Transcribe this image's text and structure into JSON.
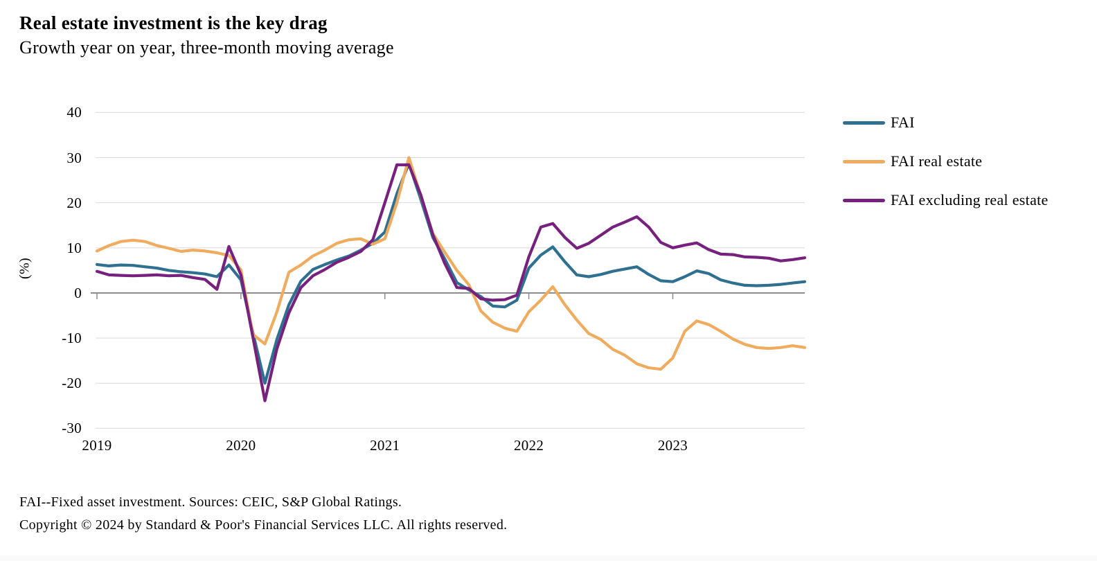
{
  "header": {
    "title": "Real estate investment is the key drag",
    "subtitle": "Growth year on year, three-month moving average"
  },
  "footer": {
    "note": "FAI--Fixed asset investment. Sources: CEIC, S&P Global Ratings.",
    "copyright": "Copyright © 2024 by Standard & Poor's Financial Services LLC. All rights reserved."
  },
  "colors": {
    "fai": "#2f7090",
    "fai_real_estate": "#efab5e",
    "fai_ex_real_estate": "#77217e",
    "gridline": "#d9d9d9",
    "zero_line": "#8c8c8c",
    "text": "#000000"
  },
  "chart_data": {
    "type": "line",
    "title": "Real estate investment is the key drag",
    "subtitle": "Growth year on year, three-month moving average",
    "xlabel": "",
    "ylabel": "(%)",
    "ylim": [
      -30,
      40
    ],
    "y_ticks": [
      40,
      30,
      20,
      10,
      0,
      -10,
      -20,
      -30
    ],
    "x_tick_labels": [
      "2019",
      "2020",
      "2021",
      "2022",
      "2023"
    ],
    "x_tick_month_indices": [
      0,
      12,
      24,
      36,
      48
    ],
    "grid": true,
    "legend_position": "right",
    "x": [
      "2019-01",
      "2019-02",
      "2019-03",
      "2019-04",
      "2019-05",
      "2019-06",
      "2019-07",
      "2019-08",
      "2019-09",
      "2019-10",
      "2019-11",
      "2019-12",
      "2020-01",
      "2020-02",
      "2020-03",
      "2020-04",
      "2020-05",
      "2020-06",
      "2020-07",
      "2020-08",
      "2020-09",
      "2020-10",
      "2020-11",
      "2020-12",
      "2021-01",
      "2021-02",
      "2021-03",
      "2021-04",
      "2021-05",
      "2021-06",
      "2021-07",
      "2021-08",
      "2021-09",
      "2021-10",
      "2021-11",
      "2021-12",
      "2022-01",
      "2022-02",
      "2022-03",
      "2022-04",
      "2022-05",
      "2022-06",
      "2022-07",
      "2022-08",
      "2022-09",
      "2022-10",
      "2022-11",
      "2022-12",
      "2023-01",
      "2023-02",
      "2023-03",
      "2023-04",
      "2023-05",
      "2023-06",
      "2023-07",
      "2023-08",
      "2023-09",
      "2023-10",
      "2023-11",
      "2023-12"
    ],
    "series": [
      {
        "name": "FAI",
        "color": "#2f7090",
        "values": [
          6.3,
          6.0,
          6.2,
          6.1,
          5.8,
          5.5,
          5.0,
          4.7,
          4.5,
          4.2,
          3.6,
          6.2,
          2.9,
          -8.8,
          -20.0,
          -10.3,
          -2.6,
          2.6,
          5.2,
          6.3,
          7.3,
          8.2,
          9.5,
          11.0,
          13.5,
          22.0,
          28.7,
          20.7,
          12.3,
          7.5,
          2.3,
          0.7,
          -0.8,
          -2.9,
          -3.1,
          -1.6,
          5.5,
          8.4,
          10.2,
          6.9,
          4.0,
          3.6,
          4.1,
          4.8,
          5.3,
          5.8,
          4.1,
          2.7,
          2.5,
          3.6,
          4.9,
          4.3,
          2.9,
          2.2,
          1.7,
          1.6,
          1.7,
          1.9,
          2.2,
          2.5
        ]
      },
      {
        "name": "FAI real estate",
        "color": "#efab5e",
        "values": [
          9.3,
          10.5,
          11.4,
          11.7,
          11.4,
          10.5,
          9.9,
          9.2,
          9.5,
          9.3,
          8.9,
          8.3,
          5.1,
          -9.2,
          -11.3,
          -4.2,
          4.6,
          6.2,
          8.2,
          9.5,
          11.0,
          11.8,
          12.0,
          10.8,
          12.0,
          20.0,
          30.0,
          21.5,
          13.2,
          9.0,
          5.0,
          1.8,
          -4.0,
          -6.5,
          -7.8,
          -8.5,
          -4.2,
          -1.6,
          1.4,
          -2.6,
          -6.0,
          -9.0,
          -10.3,
          -12.5,
          -13.8,
          -15.7,
          -16.6,
          -16.9,
          -14.4,
          -8.5,
          -6.2,
          -7.0,
          -8.5,
          -10.2,
          -11.4,
          -12.1,
          -12.3,
          -12.1,
          -11.7,
          -12.1
        ]
      },
      {
        "name": "FAI excluding real estate",
        "color": "#77217e",
        "values": [
          4.8,
          4.0,
          3.9,
          3.8,
          3.9,
          4.0,
          3.8,
          3.9,
          3.4,
          3.0,
          0.8,
          10.3,
          4.0,
          -9.8,
          -23.9,
          -12.4,
          -4.4,
          1.2,
          3.8,
          5.2,
          6.8,
          7.9,
          9.2,
          11.8,
          20.0,
          28.4,
          28.4,
          21.7,
          12.9,
          6.5,
          1.2,
          1.0,
          -1.3,
          -1.6,
          -1.5,
          -0.5,
          8.0,
          14.6,
          15.4,
          12.3,
          9.9,
          11.0,
          12.8,
          14.6,
          15.7,
          16.9,
          14.6,
          11.2,
          10.0,
          10.6,
          11.1,
          9.6,
          8.6,
          8.5,
          8.0,
          7.9,
          7.7,
          7.1,
          7.4,
          7.8
        ]
      }
    ]
  }
}
